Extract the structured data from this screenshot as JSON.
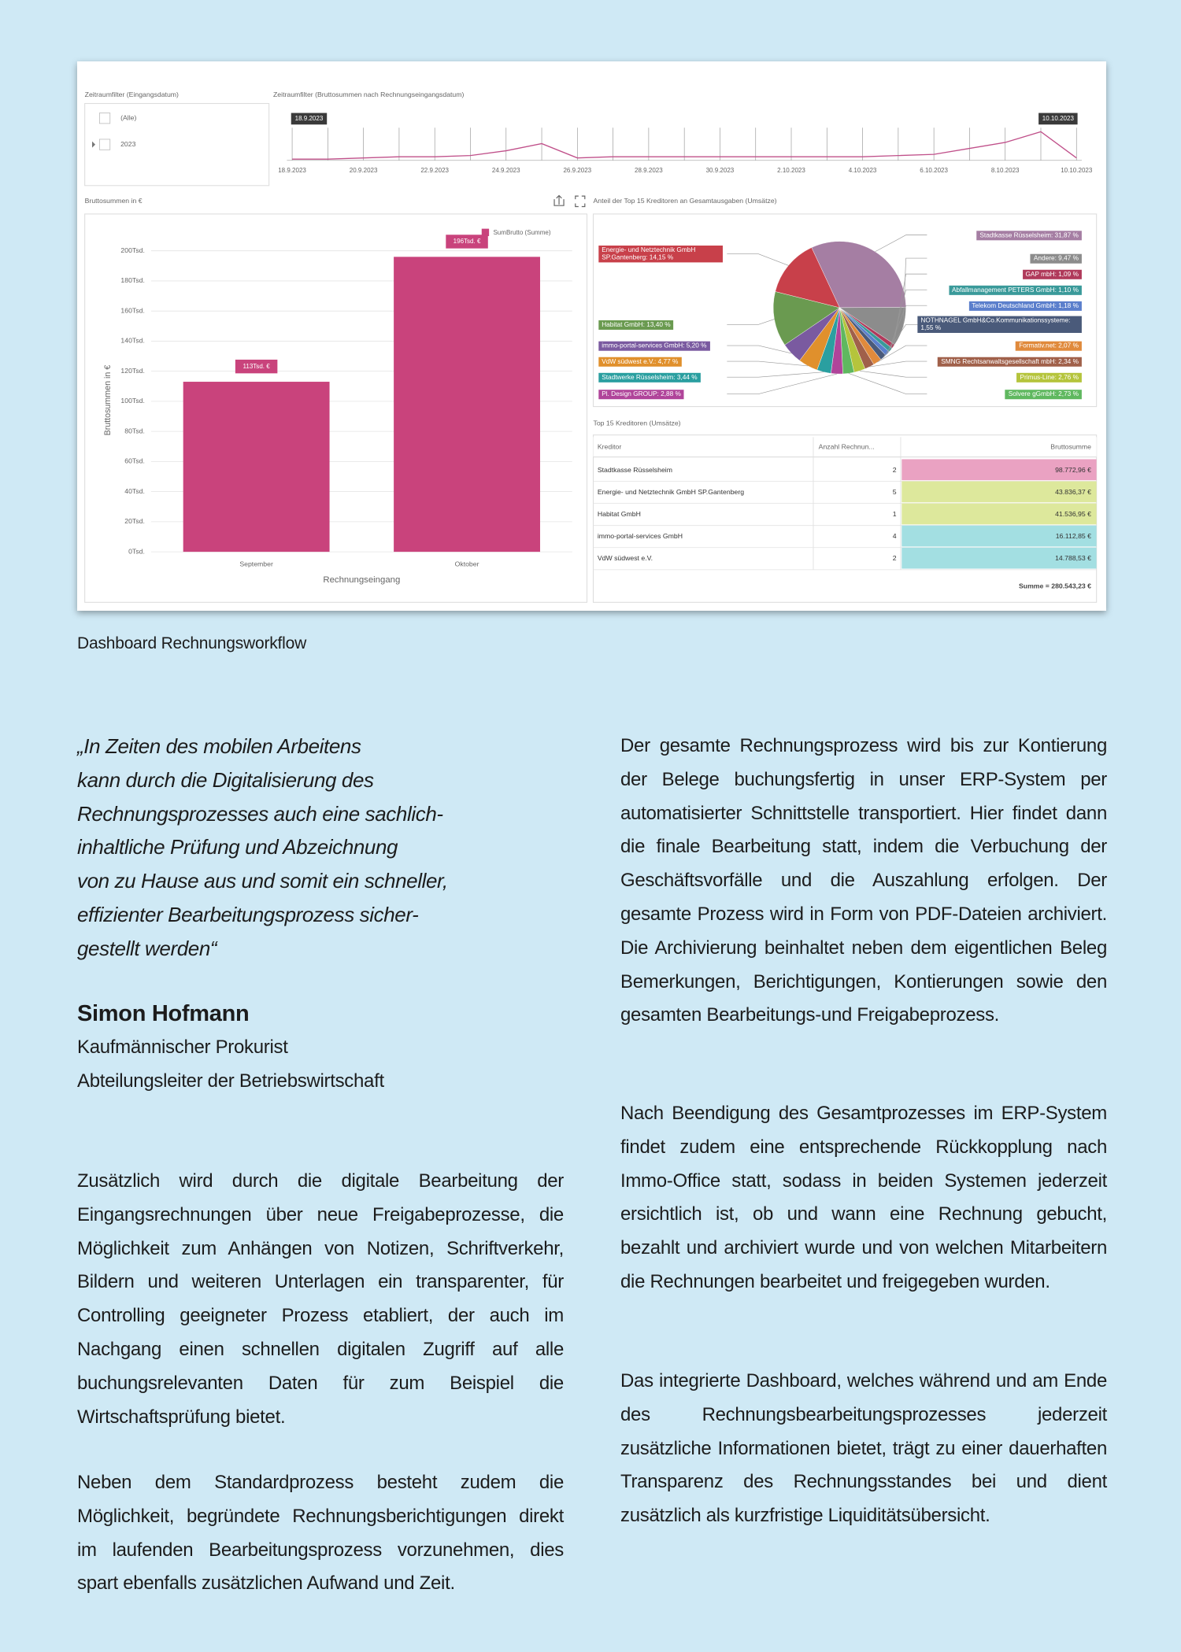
{
  "date_filter": {
    "title": "Zeitraumfilter (Eingangsdatum)",
    "items": [
      "(Alle)",
      "2023"
    ]
  },
  "chart_data": [
    {
      "type": "line",
      "title": "Zeitraumfilter (Bruttosummen nach Rechnungseingangsdatum)",
      "categories": [
        "18.9.2023",
        null,
        "20.9.2023",
        null,
        "22.9.2023",
        null,
        "24.9.2023",
        null,
        "26.9.2023",
        null,
        "28.9.2023",
        null,
        "30.9.2023",
        null,
        "2.10.2023",
        null,
        "4.10.2023",
        null,
        "6.10.2023",
        null,
        "8.10.2023",
        null,
        "10.10.2023"
      ],
      "values": [
        1,
        1,
        2,
        3,
        3,
        4,
        8,
        14,
        2,
        3,
        3,
        3,
        3,
        3,
        3,
        3,
        3,
        4,
        5,
        10,
        15,
        24,
        2
      ],
      "ylim": [
        0,
        30
      ],
      "color": "#c0508a"
    },
    {
      "type": "bar",
      "title": "Bruttosummen in €",
      "y_label": "Bruttosummen in €",
      "x_label": "Rechnungseingang",
      "categories": [
        "September",
        "Oktober"
      ],
      "series": [
        {
          "name": "SumBrutto (Summe)",
          "color": "#c9437c",
          "values": [
            113,
            196
          ],
          "value_labels": [
            "113Tsd. €",
            "196Tsd. €"
          ]
        }
      ],
      "ylim": [
        0,
        200
      ],
      "yticks": [
        {
          "value": 0,
          "label": "0Tsd."
        },
        {
          "value": 20,
          "label": "20Tsd."
        },
        {
          "value": 40,
          "label": "40Tsd."
        },
        {
          "value": 60,
          "label": "60Tsd."
        },
        {
          "value": 80,
          "label": "80Tsd."
        },
        {
          "value": 100,
          "label": "100Tsd."
        },
        {
          "value": 120,
          "label": "120Tsd."
        },
        {
          "value": 140,
          "label": "140Tsd."
        },
        {
          "value": 160,
          "label": "160Tsd."
        },
        {
          "value": 180,
          "label": "180Tsd."
        },
        {
          "value": 200,
          "label": "200Tsd."
        }
      ],
      "grid": true
    },
    {
      "type": "pie",
      "title": "Anteil der Top 15 Kreditoren an Gesamtausgaben (Umsätze)",
      "values": [
        31.87,
        9.47,
        1.09,
        1.1,
        1.18,
        1.55,
        2.07,
        2.34,
        2.76,
        2.73,
        2.88,
        3.44,
        4.77,
        5.2,
        13.4,
        14.15
      ],
      "value_labels": [
        "Stadtkasse Rüsselsheim: 31,87 %",
        "Andere: 9,47 %",
        "GAP mbH: 1,09 %",
        "Abfallmanagement PETERS GmbH: 1,10 %",
        "Telekom Deutschland GmbH: 1,18 %",
        "NOTHNAGEL GmbH&Co.Kommunikationssysteme: 1,55 %",
        "Formativ.net: 2,07 %",
        "SMNG Rechtsanwaltsgesellschaft mbH: 2,34 %",
        "Primus-Line: 2,76 %",
        "Solvere gGmbH: 2,73 %",
        "Pl. Design GROUP: 2,88 %",
        "Stadtwerke Rüsselsheim: 3,44 %",
        "VdW südwest e.V.: 4,77 %",
        "immo-portal-services GmbH: 5,20 %",
        "Habitat GmbH: 13,40 %",
        "Energie- und Netztechnik GmbH SP.Gantenberg: 14,15 %"
      ],
      "colors": [
        "#a57ea3",
        "#8c8c8c",
        "#b03a5b",
        "#3a9a9a",
        "#5b7fcc",
        "#4a5a7a",
        "#e08a3c",
        "#a0604a",
        "#b5c43c",
        "#5fb85f",
        "#b0449a",
        "#2a9fa0",
        "#e0902c",
        "#7a5aa0",
        "#6a9a50",
        "#c8404a"
      ]
    }
  ],
  "table": {
    "title": "Top 15 Kreditoren (Umsätze)",
    "columns": [
      "Kreditor",
      "Anzahl Rechnun...",
      "Bruttosumme"
    ],
    "rows": [
      [
        "Stadtkasse Rüsselsheim",
        2,
        "98.772,96 €"
      ],
      [
        "Energie- und Netztechnik GmbH SP.Gantenberg",
        5,
        "43.836,37 €"
      ],
      [
        "Habitat GmbH",
        1,
        "41.536,95 €"
      ],
      [
        "immo-portal-services GmbH",
        4,
        "16.112,85 €"
      ],
      [
        "VdW südwest e.V.",
        2,
        "14.788,53 €"
      ]
    ],
    "row_colors": [
      "#eaa2c2",
      "#dde89c",
      "#dde89c",
      "#a3dfe2",
      "#a3dfe2"
    ],
    "total": "Summe = 280.543,23 €"
  },
  "caption": "Dashboard Rechnungsworkflow",
  "quote": [
    "„In Zeiten des mobilen Arbeitens",
    "kann durch die Digitalisierung des",
    "Rechnungsprozesses auch eine sachlich-",
    "inhaltliche Prüfung und Abzeichnung",
    "von zu Hause aus und somit ein schneller,",
    "effizienter Bearbeitungsprozess sicher-",
    "gestellt werden“"
  ],
  "author": {
    "name": "Simon Hofmann",
    "roles": [
      "Kaufmännischer Prokurist",
      "Abteilungsleiter der Betriebswirtschaft"
    ]
  },
  "paragraphs": {
    "left": [
      "Zusätzlich wird durch die digitale Bearbeitung der Eingangsrechnungen über neue Freigabeprozesse, die Möglichkeit zum Anhängen von Notizen, Schriftverkehr, Bildern und weiteren Unterlagen ein transparenter, für Controlling geeigneter Prozess etabliert, der auch im Nachgang einen schnellen digitalen Zugriff auf alle buchungsrelevanten Daten für zum Beispiel die Wirtschaftsprüfung bietet.",
      "Neben dem Standardprozess besteht zudem die Möglichkeit, begründete Rechnungsberichtigungen direkt im laufenden Bearbeitungsprozess vorzunehmen, dies spart ebenfalls zusätzlichen Aufwand und Zeit."
    ],
    "right": [
      "Der gesamte Rechnungsprozess wird bis zur Kontierung der Belege buchungsfertig in unser ERP-System per automatisierter Schnittstelle transportiert. Hier findet dann die finale Bearbeitung statt, indem die Verbuchung der Geschäftsvorfälle und die Auszahlung erfolgen. Der gesamte Prozess wird in Form von PDF-Dateien archiviert. Die Archivierung beinhaltet neben dem eigentlichen Beleg Bemerkungen, Berichtigungen, Kontierungen sowie den gesamten Bearbeitungs-und Freigabeprozess.",
      "Nach Beendigung des Gesamtprozesses im ERP-System findet zudem eine entsprechende Rückkopplung nach Immo-Office statt, sodass in beiden Systemen jederzeit ersichtlich ist, ob und wann eine Rechnung gebucht, bezahlt und archiviert wurde und von welchen Mitarbeitern die Rechnungen bearbeitet und freigegeben wurden.",
      "Das integrierte Dashboard, welches während und am Ende des Rechnungsbearbeitungsprozesses jederzeit zusätzliche Informationen bietet, trägt zu einer dauerhaften Transparenz des Rechnungsstandes bei und dient zusätzlich als kurzfristige Liquiditätsübersicht."
    ]
  }
}
